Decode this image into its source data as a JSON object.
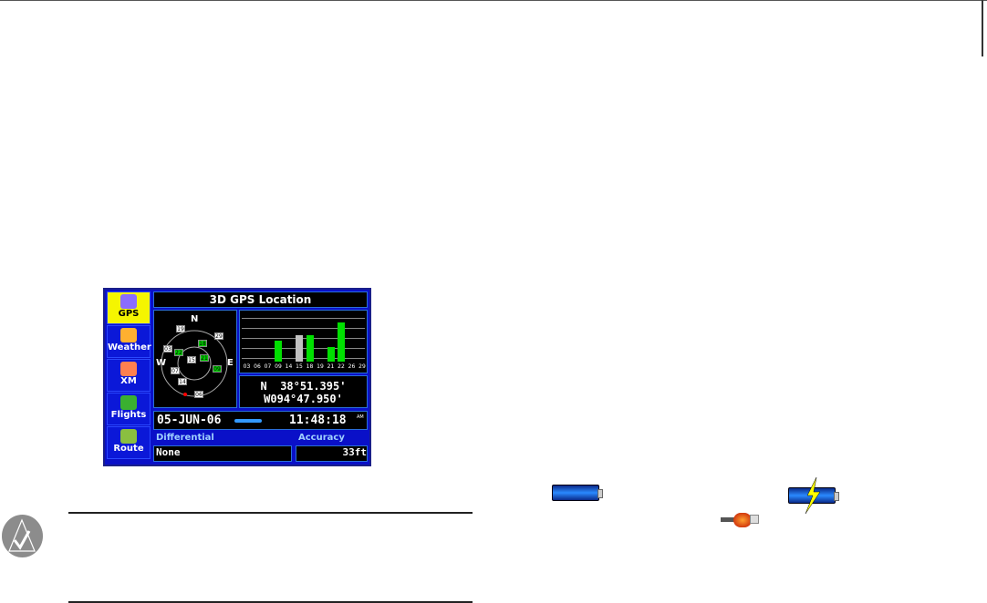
{
  "device": {
    "sidebar": [
      {
        "label": "GPS",
        "selected": true,
        "icon": "gps-satellite-icon"
      },
      {
        "label": "Weather",
        "icon": "weather-sun-cloud-icon"
      },
      {
        "label": "XM",
        "icon": "xm-radio-icon"
      },
      {
        "label": "Flights",
        "icon": "flights-map-icon"
      },
      {
        "label": "Route",
        "icon": "route-map-icon"
      }
    ],
    "title": "3D GPS Location",
    "compass": {
      "n": "N",
      "e": "E",
      "w": "W"
    },
    "sky_satellites": [
      {
        "id": "19",
        "used": false
      },
      {
        "id": "29",
        "used": false
      },
      {
        "id": "03",
        "used": false
      },
      {
        "id": "22",
        "used": true
      },
      {
        "id": "18",
        "used": true
      },
      {
        "id": "15",
        "used": false
      },
      {
        "id": "21",
        "used": true
      },
      {
        "id": "09",
        "used": true
      },
      {
        "id": "07",
        "used": false
      },
      {
        "id": "14",
        "used": false
      },
      {
        "id": "06",
        "used": false
      }
    ],
    "signal_bars": [
      {
        "id": "03",
        "level": 0
      },
      {
        "id": "06",
        "level": 0
      },
      {
        "id": "07",
        "level": 0
      },
      {
        "id": "09",
        "level": 0.45,
        "color": "#00e000"
      },
      {
        "id": "14",
        "level": 0
      },
      {
        "id": "15",
        "level": 0.55,
        "color": "#c0c0c0"
      },
      {
        "id": "18",
        "level": 0.55,
        "color": "#00e000"
      },
      {
        "id": "19",
        "level": 0
      },
      {
        "id": "21",
        "level": 0.3,
        "color": "#00e000"
      },
      {
        "id": "22",
        "level": 0.82,
        "color": "#00e000"
      },
      {
        "id": "26",
        "level": 0
      },
      {
        "id": "29",
        "level": 0
      }
    ],
    "lat": "N  38°51.395'",
    "lon": "W094°47.950'",
    "date": "05-JUN-06",
    "time": "11:48:18",
    "time_suffix": "AM",
    "differential_label": "Differential",
    "differential_value": "None",
    "accuracy_label": "Accuracy",
    "accuracy_value": "33ft"
  },
  "icons": {
    "note": "note-check-icon",
    "battery": "battery-icon",
    "battery_charging": "battery-charging-icon",
    "power_plug": "power-plug-icon"
  }
}
